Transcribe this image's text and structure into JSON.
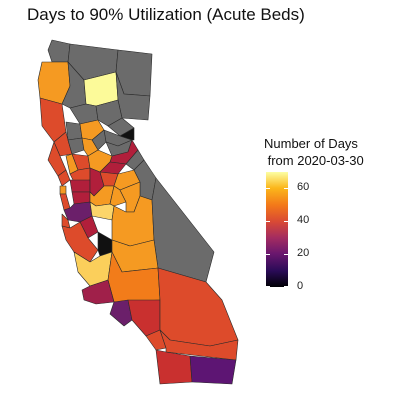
{
  "title": "Days to 90% Utilization (Acute Beds)",
  "legend": {
    "title_line1": "Number of Days",
    "title_line2": " from 2020-03-30",
    "ticks": [
      "60",
      "40",
      "20",
      "0"
    ],
    "range": [
      0,
      70
    ],
    "colormap": "inferno",
    "no_data_color": "#6b6b6b"
  }
}
